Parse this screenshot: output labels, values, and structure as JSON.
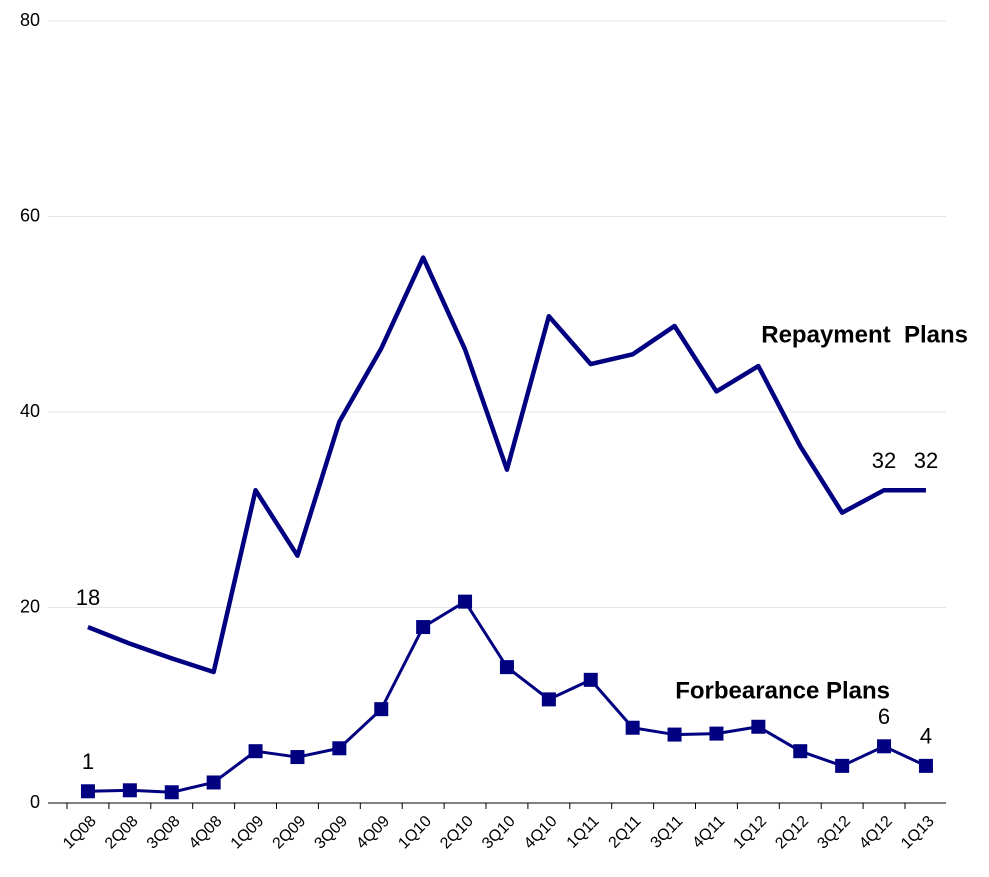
{
  "chart_data": {
    "type": "line",
    "categories": [
      "1Q08",
      "2Q08",
      "3Q08",
      "4Q08",
      "1Q09",
      "2Q09",
      "3Q09",
      "4Q09",
      "1Q10",
      "2Q10",
      "3Q10",
      "4Q10",
      "1Q11",
      "2Q11",
      "3Q11",
      "4Q11",
      "1Q12",
      "2Q12",
      "3Q12",
      "4Q12",
      "1Q13"
    ],
    "series": [
      {
        "name": "Repayment  Plans",
        "color": "#000080",
        "marker": false,
        "values": [
          18,
          16.3,
          14.8,
          13.4,
          32,
          25.3,
          39,
          46.5,
          55.8,
          46.4,
          34.1,
          49.8,
          44.9,
          45.9,
          48.8,
          42.1,
          44.7,
          36.5,
          29.7,
          32,
          32
        ],
        "value_labels": [
          "18",
          null,
          null,
          null,
          null,
          null,
          null,
          null,
          null,
          null,
          null,
          null,
          null,
          null,
          null,
          null,
          null,
          null,
          null,
          "32",
          "32"
        ]
      },
      {
        "name": "Forbearance Plans",
        "color": "#000080",
        "marker": true,
        "values": [
          1.2,
          1.3,
          1.1,
          2.1,
          5.3,
          4.7,
          5.6,
          9.6,
          18,
          20.6,
          13.9,
          10.6,
          12.6,
          7.7,
          7.0,
          7.1,
          7.8,
          5.3,
          3.8,
          5.8,
          3.8
        ],
        "value_labels": [
          "1",
          null,
          null,
          null,
          null,
          null,
          null,
          null,
          null,
          null,
          null,
          null,
          null,
          null,
          null,
          null,
          null,
          null,
          null,
          "6",
          "4"
        ]
      }
    ],
    "ylim": [
      0,
      80
    ],
    "yticks": [
      0,
      20,
      40,
      60,
      80
    ],
    "grid": true
  }
}
